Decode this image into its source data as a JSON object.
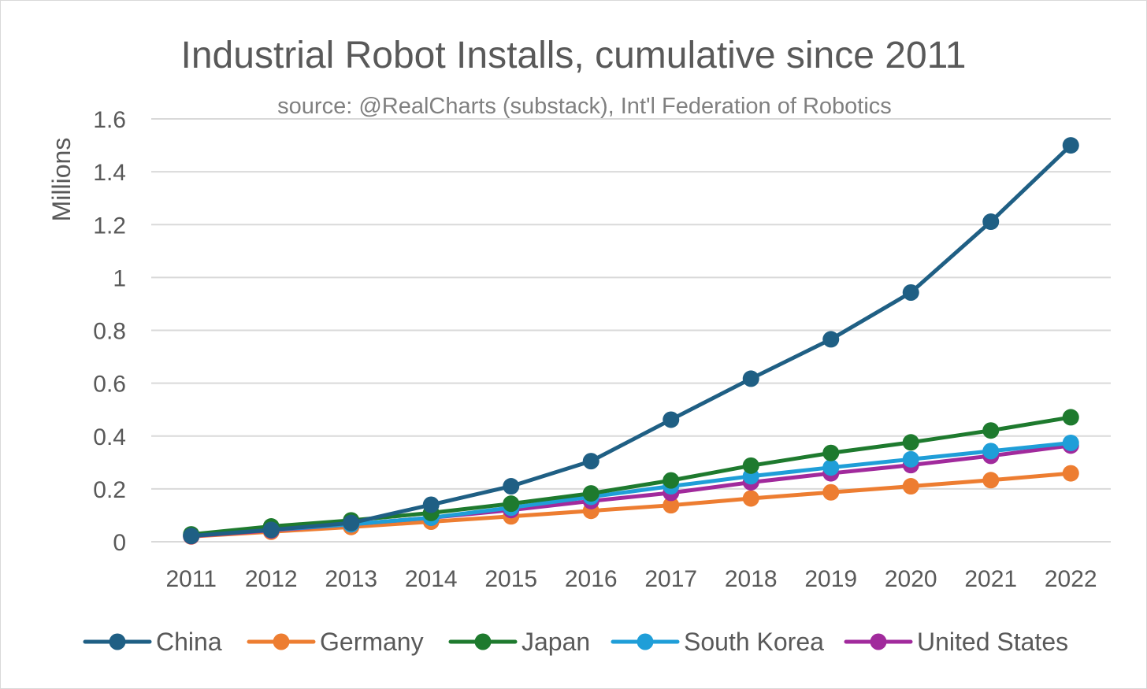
{
  "chart_data": {
    "type": "line",
    "title": "Industrial Robot Installs, cumulative since 2011",
    "subtitle": "source: @RealCharts (substack), Int'l Federation of Robotics",
    "xlabel": "",
    "ylabel": "Millions",
    "ylim": [
      0,
      1.6
    ],
    "yticks": [
      "0",
      "0.2",
      "0.4",
      "0.6",
      "0.8",
      "1",
      "1.2",
      "1.4",
      "1.6"
    ],
    "grid": true,
    "legend": "bottom",
    "categories": [
      "2011",
      "2012",
      "2013",
      "2014",
      "2015",
      "2016",
      "2017",
      "2018",
      "2019",
      "2020",
      "2021",
      "2022"
    ],
    "series": [
      {
        "name": "China",
        "color": "#1f5f84",
        "values": [
          0.022,
          0.045,
          0.071,
          0.14,
          0.21,
          0.305,
          0.462,
          0.617,
          0.766,
          0.943,
          1.211,
          1.5
        ]
      },
      {
        "name": "Germany",
        "color": "#ed7d31",
        "values": [
          0.02,
          0.038,
          0.056,
          0.076,
          0.096,
          0.117,
          0.138,
          0.164,
          0.187,
          0.21,
          0.233,
          0.259
        ]
      },
      {
        "name": "Japan",
        "color": "#1e7a2e",
        "values": [
          0.028,
          0.058,
          0.081,
          0.109,
          0.144,
          0.183,
          0.232,
          0.288,
          0.336,
          0.376,
          0.421,
          0.471
        ]
      },
      {
        "name": "South Korea",
        "color": "#1f9ed8",
        "values": [
          0.025,
          0.045,
          0.066,
          0.091,
          0.129,
          0.17,
          0.21,
          0.248,
          0.281,
          0.312,
          0.343,
          0.374
        ]
      },
      {
        "name": "United States",
        "color": "#a12a9c",
        "values": [
          0.021,
          0.043,
          0.066,
          0.091,
          0.12,
          0.154,
          0.185,
          0.225,
          0.259,
          0.29,
          0.325,
          0.364
        ]
      }
    ]
  }
}
